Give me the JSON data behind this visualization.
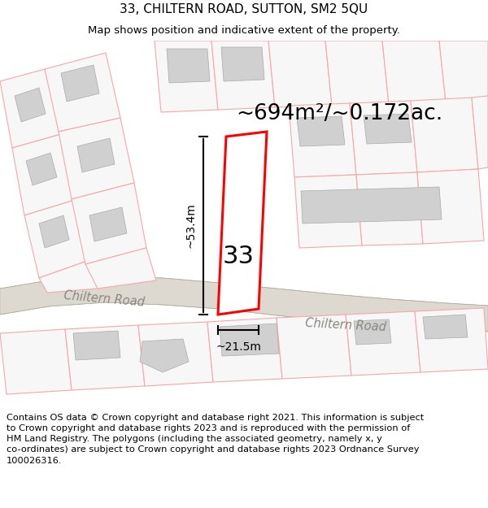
{
  "title_line1": "33, CHILTERN ROAD, SUTTON, SM2 5QU",
  "title_line2": "Map shows position and indicative extent of the property.",
  "area_text": "~694m²/~0.172ac.",
  "label_number": "33",
  "dim_height": "~53.4m",
  "dim_width": "~21.5m",
  "road_label1": "Chiltern Road",
  "road_label2": "Chiltern Road",
  "footer_line1": "Contains OS data © Crown copyright and database right 2021. This information is subject",
  "footer_line2": "to Crown copyright and database rights 2023 and is reproduced with the permission of",
  "footer_line3": "HM Land Registry. The polygons (including the associated geometry, namely x, y",
  "footer_line4": "co-ordinates) are subject to Crown copyright and database rights 2023 Ordnance Survey",
  "footer_line5": "100026316.",
  "bg_color": "#ffffff",
  "light_red": "#f5a8a8",
  "mid_red": "#e88888",
  "property_red": "#ff0000",
  "road_fill": "#e0dbd4",
  "road_edge": "#c8c0b8",
  "gray_fill": "#d0d0d0",
  "plot_fill": "#f7f7f7",
  "title_fs": 11,
  "sub_fs": 9.5,
  "area_fs": 19,
  "num_fs": 22,
  "foot_fs": 8.2,
  "dim_fs": 10
}
